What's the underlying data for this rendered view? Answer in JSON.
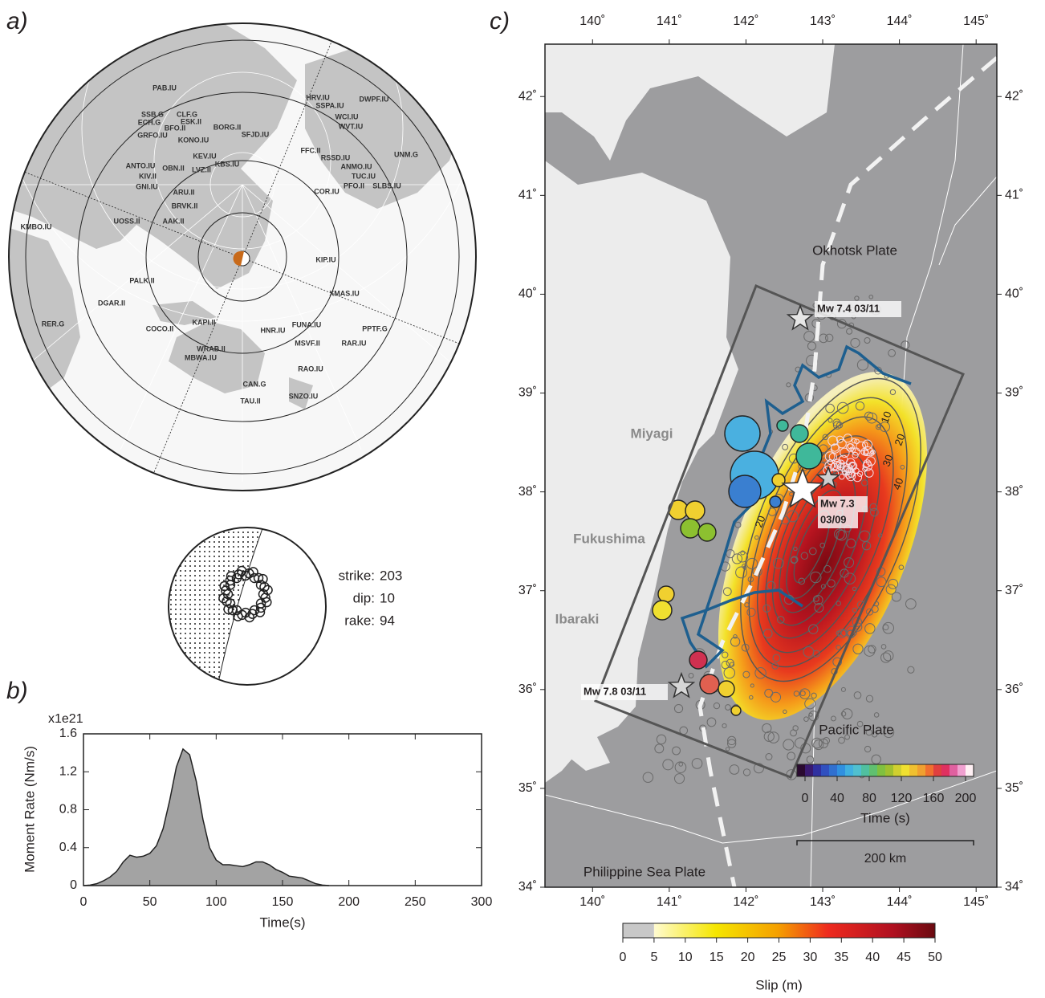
{
  "panel_labels": [
    "a)",
    "b)",
    "c)"
  ],
  "stations": [
    "PAB.IU",
    "SSB.G",
    "CLF.G",
    "ECH.G",
    "ESK.II",
    "BFO.II",
    "GRFO.IU",
    "KONO.IU",
    "BORG.II",
    "SFJD.IU",
    "KEV.IU",
    "KBS.IU",
    "ANTO.IU",
    "OBN.II",
    "LVZ.II",
    "KIV.II",
    "GNI.IU",
    "ARU.II",
    "BRVK.II",
    "UOSS.II",
    "AAK.II",
    "KMBO.IU",
    "HRV.IU",
    "SSPA.IU",
    "DWPF.IU",
    "WCI.IU",
    "WVT.IU",
    "FFC.II",
    "RSSD.IU",
    "ANMO.IU",
    "TUC.IU",
    "PFO.II",
    "SLBS.IU",
    "COR.IU",
    "UNM.G",
    "KIP.IU",
    "PALK.II",
    "XMAS.IU",
    "DGAR.II",
    "RER.G",
    "COCO.II",
    "KAPI.II",
    "HNR.IU",
    "FUNA.IU",
    "PPTF.G",
    "MSVF.II",
    "RAR.IU",
    "RAO.IU",
    "WRAB.II",
    "MBWA.IU",
    "CAN.G",
    "TAU.II",
    "SNZO.IU"
  ],
  "mechanism": [
    {
      "label": "strike:",
      "value": 203
    },
    {
      "label": "dip:",
      "value": 10
    },
    {
      "label": "rake:",
      "value": 94
    }
  ],
  "chart_data": [
    {
      "type": "area",
      "multiplier": "x1e21",
      "y_label": "Moment Rate (Nm/s)",
      "x_label": "Time(s)",
      "x": [
        0,
        5,
        10,
        15,
        20,
        25,
        30,
        35,
        40,
        45,
        50,
        55,
        60,
        65,
        70,
        75,
        80,
        85,
        90,
        95,
        100,
        105,
        110,
        115,
        120,
        125,
        130,
        135,
        140,
        145,
        150,
        155,
        160,
        165,
        170,
        175,
        180,
        185
      ],
      "values": [
        0,
        0.005,
        0.02,
        0.05,
        0.09,
        0.15,
        0.25,
        0.32,
        0.3,
        0.31,
        0.34,
        0.42,
        0.6,
        0.9,
        1.25,
        1.44,
        1.38,
        1.1,
        0.7,
        0.4,
        0.27,
        0.22,
        0.22,
        0.21,
        0.2,
        0.22,
        0.25,
        0.25,
        0.22,
        0.17,
        0.14,
        0.1,
        0.09,
        0.08,
        0.05,
        0.02,
        0.005,
        0
      ],
      "color": "#a3a3a3",
      "xlim": [
        0,
        300
      ],
      "ylim": [
        0,
        1.6
      ],
      "xticks": [
        0,
        50,
        100,
        150,
        200,
        250,
        300
      ],
      "yticks": [
        0,
        0.4,
        0.8,
        1.2,
        1.6
      ]
    },
    {
      "type": "map",
      "xlim": [
        139.38,
        145.27
      ],
      "ylim": [
        34,
        42.53
      ],
      "xticks": [
        {
          "value": 140,
          "label": "140˚"
        },
        {
          "value": 141,
          "label": "141˚"
        },
        {
          "value": 142,
          "label": "142˚"
        },
        {
          "value": 143,
          "label": "143˚"
        },
        {
          "value": 144,
          "label": "144˚"
        },
        {
          "value": 145,
          "label": "145˚"
        }
      ],
      "yticks": [
        {
          "value": 34,
          "label": "34˚"
        },
        {
          "value": 35,
          "label": "35˚"
        },
        {
          "value": 36,
          "label": "36˚"
        },
        {
          "value": 37,
          "label": "37˚"
        },
        {
          "value": 38,
          "label": "38˚"
        },
        {
          "value": 39,
          "label": "39˚"
        },
        {
          "value": 40,
          "label": "40˚"
        },
        {
          "value": 41,
          "label": "41˚"
        },
        {
          "value": 42,
          "label": "42˚"
        }
      ],
      "plates": [
        "Okhotsk Plate",
        "Pacific Plate",
        "Philippine Sea Plate"
      ],
      "prefectures": [
        "Miyagi",
        "Fukushima",
        "Ibaraki"
      ],
      "events": [
        [
          "Mw 7.4 03/11"
        ],
        [
          "Mw 7.3",
          "03/09"
        ],
        [
          "Mw 7.8 03/11"
        ]
      ],
      "contour_labels": [
        10,
        20,
        30,
        40,
        20
      ],
      "scale_bar": "200 km",
      "slip_colorbar": {
        "label": "Slip (m)",
        "lim": [
          0,
          50
        ],
        "ticks": [
          0,
          5,
          10,
          15,
          20,
          25,
          30,
          35,
          40,
          45,
          50
        ]
      },
      "time_colorbar": {
        "label": "Time (s)",
        "lim": [
          -10,
          210
        ],
        "ticks": [
          0,
          40,
          80,
          120,
          160,
          200
        ]
      }
    }
  ]
}
